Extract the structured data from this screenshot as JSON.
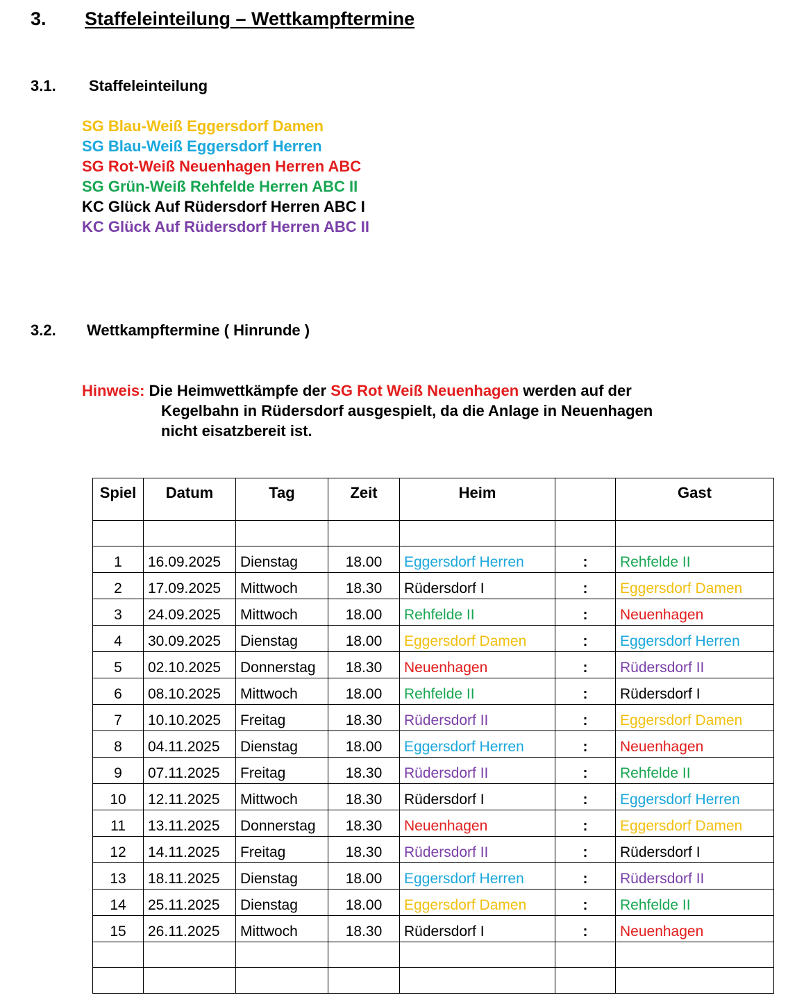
{
  "section3": {
    "number": "3.",
    "title": "Staffeleinteilung – Wettkampftermine"
  },
  "section31": {
    "number": "3.1.",
    "title": "Staffeleinteilung"
  },
  "teams": [
    {
      "name": "SG Blau-Weiß Eggersdorf Damen",
      "color": "#f2bf0f"
    },
    {
      "name": "SG Blau-Weiß Eggersdorf Herren",
      "color": "#1aa7dc"
    },
    {
      "name": "SG Rot-Weiß Neuenhagen Herren ABC",
      "color": "#e31d1d"
    },
    {
      "name": "SG Grün-Weiß Rehfelde Herren ABC II",
      "color": "#17a651"
    },
    {
      "name": "KC Glück Auf Rüdersdorf Herren ABC I",
      "color": "#000000"
    },
    {
      "name": "KC Glück Auf Rüdersdorf Herren ABC II",
      "color": "#7a3fa8"
    }
  ],
  "section32": {
    "number": "3.2.",
    "title": "Wettkampftermine ( Hinrunde )"
  },
  "hint": {
    "label": "Hinweis:",
    "label_color": "#e31d1d",
    "text_a": " Die Heimwettkämpfe der ",
    "team": "SG Rot Weiß Neuenhagen",
    "team_color": "#e31d1d",
    "text_b": " werden auf der",
    "line2": "Kegelbahn in Rüdersdorf ausgespielt, da die Anlage in Neuenhagen",
    "line3": "nicht eisatzbereit ist."
  },
  "table": {
    "headers": [
      "Spiel",
      "Datum",
      "Tag",
      "Zeit",
      "Heim",
      "",
      "Gast"
    ],
    "separator": ":",
    "team_colors": {
      "Eggersdorf Herren": "#1aa7dc",
      "Eggersdorf Damen": "#f2bf0f",
      "Neuenhagen": "#e31d1d",
      "Rehfelde II": "#17a651",
      "Rüdersdorf I": "#000000",
      "Rüdersdorf II": "#7a3fa8"
    },
    "rows": [
      {
        "spiel": "1",
        "datum": "16.09.2025",
        "tag": "Dienstag",
        "zeit": "18.00",
        "heim": "Eggersdorf Herren",
        "gast": "Rehfelde II"
      },
      {
        "spiel": "2",
        "datum": "17.09.2025",
        "tag": "Mittwoch",
        "zeit": "18.30",
        "heim": "Rüdersdorf I",
        "gast": "Eggersdorf Damen"
      },
      {
        "spiel": "3",
        "datum": "24.09.2025",
        "tag": "Mittwoch",
        "zeit": "18.00",
        "heim": "Rehfelde II",
        "gast": "Neuenhagen"
      },
      {
        "spiel": "4",
        "datum": "30.09.2025",
        "tag": "Dienstag",
        "zeit": "18.00",
        "heim": "Eggersdorf Damen",
        "gast": "Eggersdorf Herren"
      },
      {
        "spiel": "5",
        "datum": "02.10.2025",
        "tag": "Donnerstag",
        "zeit": "18.30",
        "heim": "Neuenhagen",
        "gast": "Rüdersdorf II"
      },
      {
        "spiel": "6",
        "datum": "08.10.2025",
        "tag": "Mittwoch",
        "zeit": "18.00",
        "heim": "Rehfelde II",
        "gast": "Rüdersdorf I"
      },
      {
        "spiel": "7",
        "datum": "10.10.2025",
        "tag": "Freitag",
        "zeit": "18.30",
        "heim": "Rüdersdorf II",
        "gast": "Eggersdorf Damen"
      },
      {
        "spiel": "8",
        "datum": "04.11.2025",
        "tag": "Dienstag",
        "zeit": "18.00",
        "heim": "Eggersdorf Herren",
        "gast": "Neuenhagen"
      },
      {
        "spiel": "9",
        "datum": "07.11.2025",
        "tag": "Freitag",
        "zeit": "18.30",
        "heim": "Rüdersdorf II",
        "gast": "Rehfelde II"
      },
      {
        "spiel": "10",
        "datum": "12.11.2025",
        "tag": "Mittwoch",
        "zeit": "18.30",
        "heim": "Rüdersdorf I",
        "gast": "Eggersdorf Herren"
      },
      {
        "spiel": "11",
        "datum": "13.11.2025",
        "tag": "Donnerstag",
        "zeit": "18.30",
        "heim": "Neuenhagen",
        "gast": "Eggersdorf Damen"
      },
      {
        "spiel": "12",
        "datum": "14.11.2025",
        "tag": "Freitag",
        "zeit": "18.30",
        "heim": "Rüdersdorf II",
        "gast": "Rüdersdorf I"
      },
      {
        "spiel": "13",
        "datum": "18.11.2025",
        "tag": "Dienstag",
        "zeit": "18.00",
        "heim": "Eggersdorf Herren",
        "gast": "Rüdersdorf II"
      },
      {
        "spiel": "14",
        "datum": "25.11.2025",
        "tag": "Dienstag",
        "zeit": "18.00",
        "heim": "Eggersdorf Damen",
        "gast": "Rehfelde II"
      },
      {
        "spiel": "15",
        "datum": "26.11.2025",
        "tag": "Mittwoch",
        "zeit": "18.30",
        "heim": "Rüdersdorf I",
        "gast": "Neuenhagen"
      }
    ]
  }
}
